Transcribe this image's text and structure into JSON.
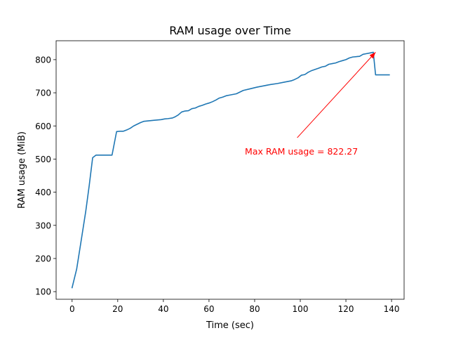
{
  "chart_data": {
    "type": "line",
    "title": "RAM usage over Time",
    "xlabel": "Time (sec)",
    "ylabel": "RAM usage (MiB)",
    "xlim": [
      -7,
      145.5
    ],
    "ylim": [
      77,
      857
    ],
    "xticks": [
      0,
      20,
      40,
      60,
      80,
      100,
      120,
      140
    ],
    "yticks": [
      100,
      200,
      300,
      400,
      500,
      600,
      700,
      800
    ],
    "grid": false,
    "line_color": "#1f77b4",
    "annotation_color": "#ff0000",
    "series": [
      {
        "x": [
          0,
          2,
          4,
          6,
          7.5,
          9,
          10.5,
          12,
          15,
          17.5,
          19.5,
          21,
          22.5,
          24,
          25.5,
          27,
          28.5,
          30,
          31.5,
          33,
          36,
          39,
          40.5,
          42,
          44,
          45,
          46.5,
          48,
          49.5,
          51,
          52.5,
          54,
          55.5,
          57,
          58.5,
          60,
          61.5,
          63,
          64.5,
          66,
          67.5,
          69,
          72,
          73.5,
          75,
          78,
          81,
          84,
          87,
          90,
          93,
          96,
          97.5,
          99,
          100.5,
          102,
          103.5,
          105,
          108,
          109.5,
          111,
          112.5,
          114,
          115.5,
          117,
          118.5,
          120,
          121.5,
          123,
          126,
          127.5,
          129,
          130.5,
          132,
          133,
          134,
          136.5,
          139
        ],
        "y": [
          112,
          168,
          255,
          343,
          420,
          504,
          512,
          512,
          512,
          512,
          583,
          584,
          584,
          588,
          593,
          600,
          605,
          610,
          614,
          615,
          617,
          619,
          621,
          622,
          624,
          627,
          633,
          642,
          645,
          646,
          652,
          654,
          659,
          662,
          666,
          669,
          673,
          678,
          684,
          687,
          691,
          693,
          697,
          702,
          707,
          712,
          717,
          721,
          725,
          728,
          732,
          736,
          740,
          745,
          753,
          755,
          762,
          767,
          774,
          778,
          780,
          786,
          788,
          790,
          794,
          797,
          800,
          805,
          808,
          810,
          816,
          818,
          820,
          822.27,
          754,
          754,
          754,
          754
        ]
      }
    ],
    "annotation": {
      "text": "Max RAM usage = 822.27",
      "point": [
        133,
        822.27
      ],
      "text_anchor": [
        100.5,
        522
      ]
    }
  }
}
